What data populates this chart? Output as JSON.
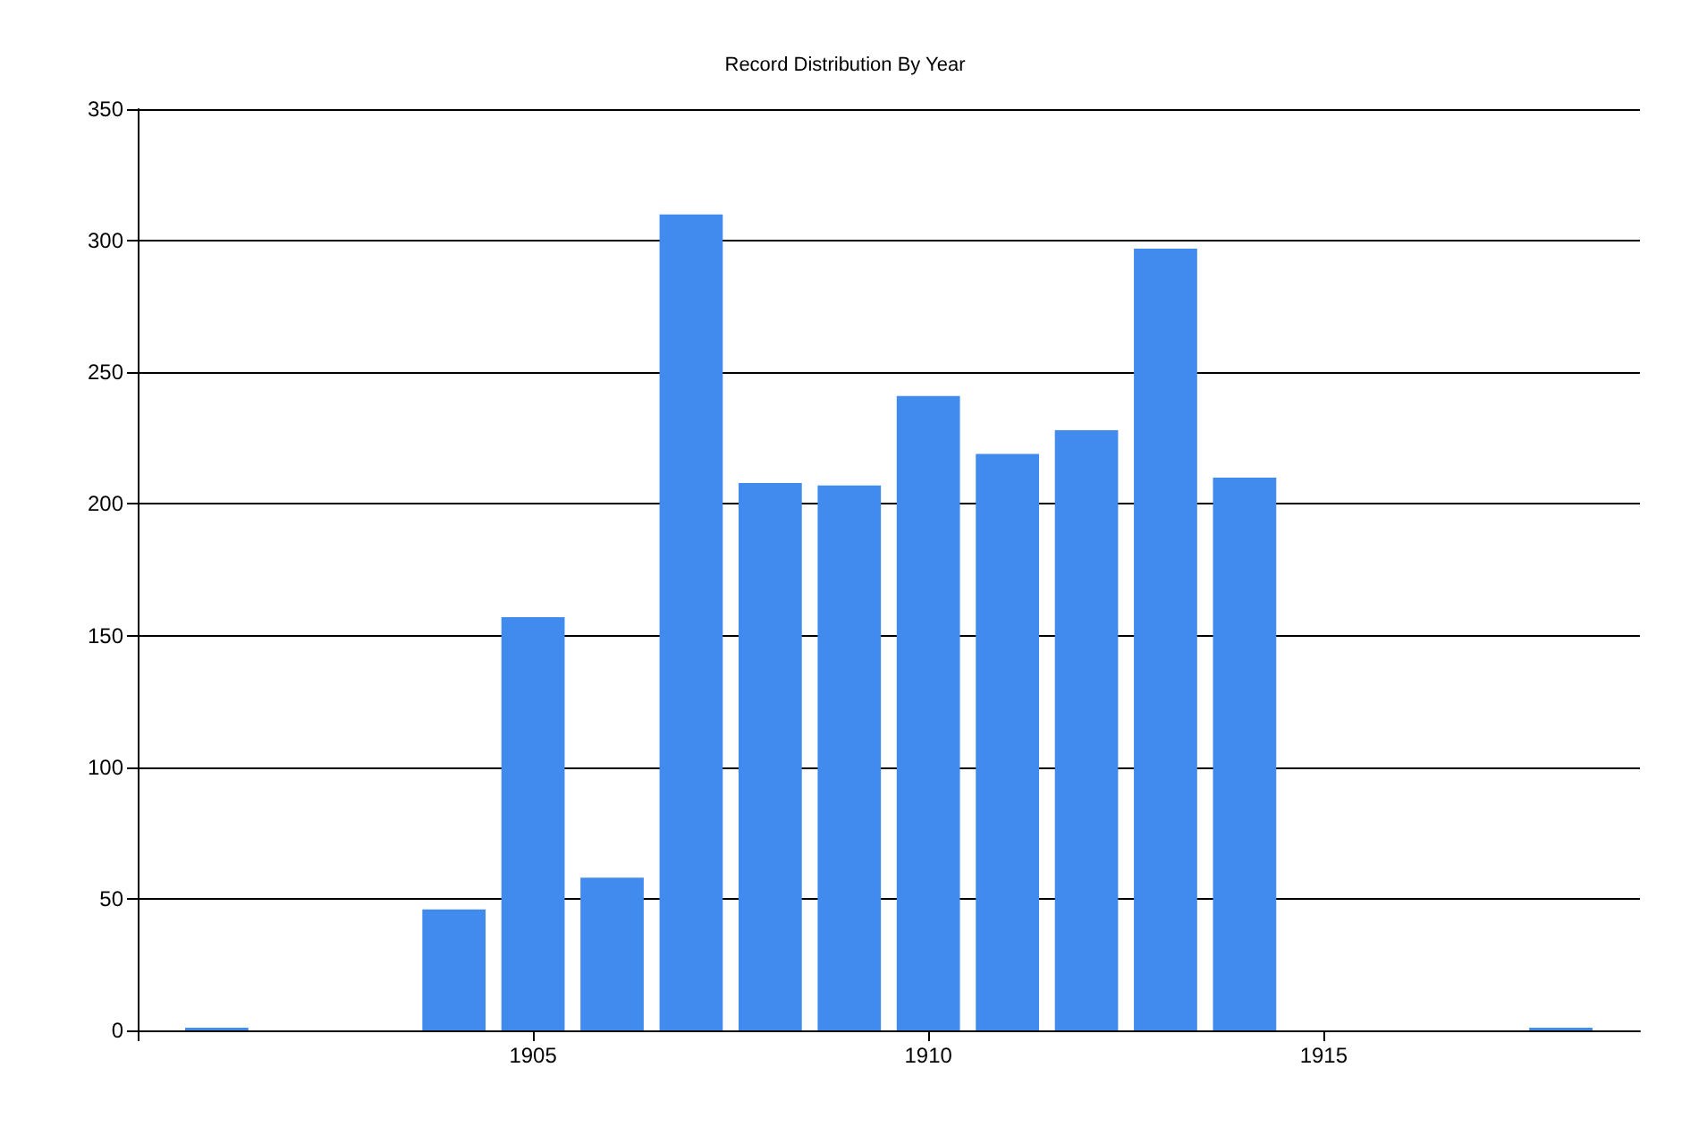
{
  "chart_data": {
    "type": "bar",
    "title": "Record Distribution By Year",
    "x": [
      1901,
      1904,
      1905,
      1906,
      1907,
      1908,
      1909,
      1910,
      1911,
      1912,
      1913,
      1914,
      1918
    ],
    "values": [
      1,
      46,
      157,
      58,
      310,
      208,
      207,
      241,
      219,
      228,
      297,
      210,
      1
    ],
    "color": "#418bee",
    "xlim": [
      1900,
      1919
    ],
    "xticks": [
      {
        "value": 1900,
        "label": null
      },
      1905,
      1910,
      1915
    ],
    "ylim": [
      0,
      350
    ],
    "yticks": [
      0,
      50,
      100,
      150,
      200,
      250,
      300,
      350
    ],
    "grid": "y"
  }
}
